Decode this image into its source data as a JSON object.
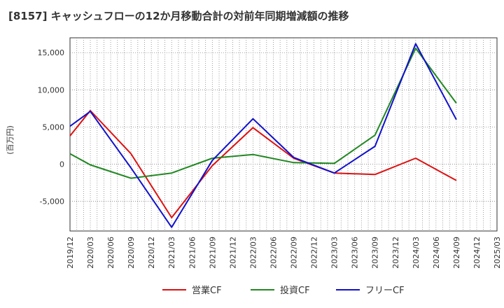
{
  "chart_data": {
    "type": "line",
    "title": "[8157]  キャッシュフローの12か月移動合計の対前年同期増減額の推移",
    "ylabel": "(百万円)",
    "xlabel": "",
    "categories": [
      "2019/12",
      "2020/03",
      "2020/06",
      "2020/09",
      "2020/12",
      "2021/03",
      "2021/06",
      "2021/09",
      "2021/12",
      "2022/03",
      "2022/06",
      "2022/09",
      "2022/12",
      "2023/03",
      "2023/06",
      "2023/09",
      "2023/12",
      "2024/03",
      "2024/06",
      "2024/09",
      "2024/12",
      "2025/03"
    ],
    "ylim": [
      -9000,
      17000
    ],
    "yticks": [
      -5000,
      0,
      5000,
      10000,
      15000
    ],
    "ytick_labels": [
      "-5,000",
      "0",
      "5,000",
      "10,000",
      "15,000"
    ],
    "grid": true,
    "legend_position": "bottom",
    "series": [
      {
        "name": "営業CF",
        "color": "#dd1111",
        "values": [
          3800,
          7200,
          null,
          1400,
          null,
          -7200,
          null,
          -200,
          null,
          4900,
          null,
          800,
          null,
          -1200,
          null,
          -1400,
          null,
          800,
          null,
          -2200,
          null,
          null
        ]
      },
      {
        "name": "投資CF",
        "color": "#228822",
        "values": [
          1400,
          -100,
          null,
          -1900,
          null,
          -1200,
          null,
          800,
          null,
          1300,
          null,
          200,
          null,
          100,
          null,
          3900,
          null,
          15600,
          null,
          8200,
          null,
          null
        ]
      },
      {
        "name": "フリーCF",
        "color": "#1111cc",
        "values": [
          5100,
          7100,
          null,
          -500,
          null,
          -8500,
          null,
          500,
          null,
          6100,
          null,
          900,
          null,
          -1200,
          null,
          2400,
          null,
          16200,
          null,
          6000,
          null,
          null
        ]
      }
    ]
  }
}
